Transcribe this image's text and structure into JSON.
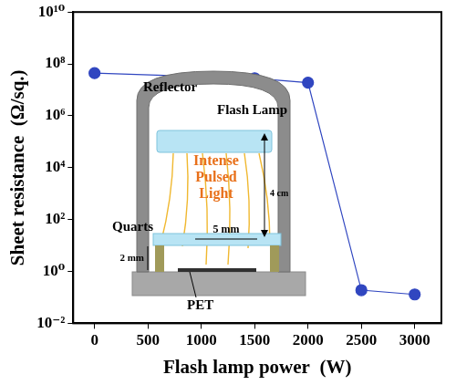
{
  "chart_data": {
    "type": "line",
    "x_label": "Flash lamp power  (W)",
    "y_label": "Sheet resistance  (Ω/sq.)",
    "x": [
      0,
      1500,
      2000,
      2500,
      3000
    ],
    "values": [
      44000000,
      28000000,
      19000000,
      0.19,
      0.13
    ],
    "color": "#3046c0",
    "marker": "circle",
    "line_style": "solid",
    "log": "y",
    "grid": false,
    "xlim": [
      -200,
      3250
    ],
    "xticks": [
      0,
      500,
      1000,
      1500,
      2000,
      2500,
      3000
    ],
    "ylim": [
      0.01,
      10000000000
    ],
    "yticks": [
      {
        "value": 0.01,
        "label": "10⁻²"
      },
      {
        "value": 1,
        "label": "10⁰"
      },
      {
        "value": 100,
        "label": "10²"
      },
      {
        "value": 10000,
        "label": "10⁴"
      },
      {
        "value": 1000000,
        "label": "10⁶"
      },
      {
        "value": 100000000,
        "label": "10⁸"
      },
      {
        "value": 10000000000,
        "label": "10¹⁰"
      }
    ],
    "annotations": [
      "Reflector",
      "Flash Lamp",
      "Intense Pulsed Light",
      "4 cm",
      "Quarts",
      "5 mm",
      "2 mm",
      "PET"
    ]
  }
}
